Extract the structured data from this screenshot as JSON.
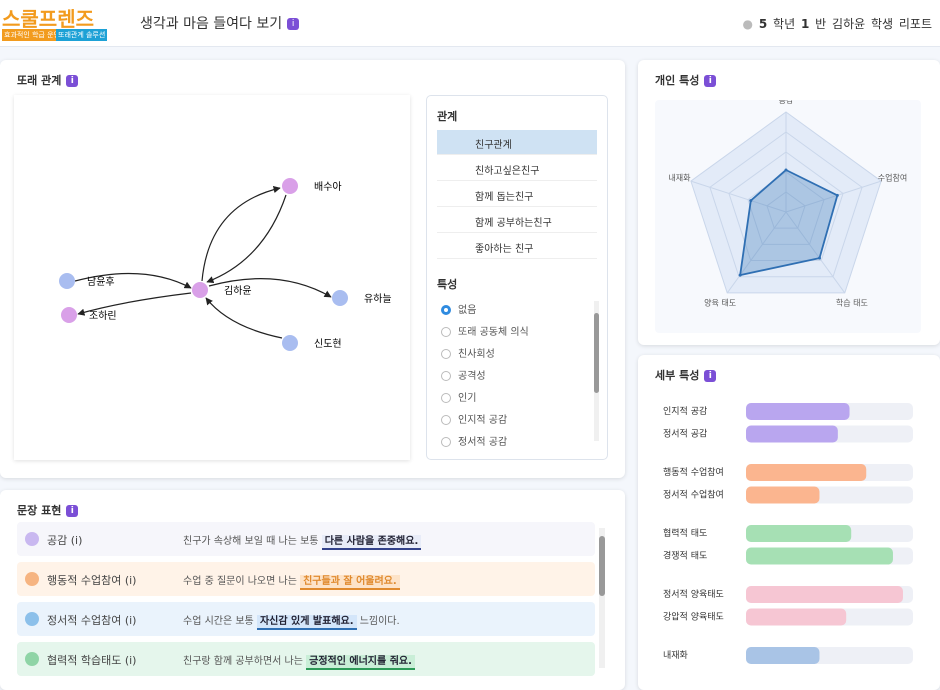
{
  "info": "i",
  "header": {
    "logo": "스쿨프렌즈",
    "logo_tags": [
      "효과적인 학급 운영",
      "또래관계 솔루션"
    ],
    "title": "생각과 마음 들여다 보기",
    "report": {
      "grade": "5",
      "grade_unit": "학년",
      "class": "1",
      "class_unit": "반",
      "name": "김하윤",
      "suffix": "학생 리포트"
    }
  },
  "peer": {
    "title": "또래 관계",
    "nodes": [
      "배수아",
      "남윤후",
      "조하린",
      "김하윤",
      "유하늘",
      "신도현"
    ],
    "relation_title": "관계",
    "relations": [
      {
        "label": "친구관계",
        "color": "#222222"
      },
      {
        "label": "친하고싶은친구",
        "color": "#3b4fd8"
      },
      {
        "label": "함께 돕는친구",
        "color": "#5ac46e"
      },
      {
        "label": "함께 공부하는친구",
        "color": "#2f8be0"
      },
      {
        "label": "좋아하는 친구",
        "color": "#7a3fc9"
      }
    ],
    "trait_title": "특성",
    "traits": [
      "없음",
      "또래 공동체 의식",
      "친사회성",
      "공격성",
      "인기",
      "인지적 공감",
      "정서적 공감"
    ]
  },
  "sentences": {
    "title": "문장 표현",
    "rows": [
      {
        "label": "공감 (i)",
        "text": "친구가 속상해 보일 때 나는 보통",
        "highlight": "다른 사람을 존중해요."
      },
      {
        "label": "행동적 수업참여 (i)",
        "text": "수업 중 질문이 나오면 나는",
        "highlight": "친구들과 잘 어울려요."
      },
      {
        "label": "정서적 수업참여 (i)",
        "text": "수업 시간은 보통",
        "highlight": "자신감 있게 발표해요.",
        "tail": "느낌이다."
      },
      {
        "label": "협력적 학습태도 (i)",
        "text": "친구랑 함께 공부하면서 나는",
        "highlight": "긍정적인 에너지를 줘요."
      }
    ]
  },
  "personal": {
    "title": "개인 특성",
    "type": "radar",
    "axes": [
      "공감",
      "수업참여",
      "학습 태도",
      "양육 태도",
      "내재화"
    ],
    "values": [
      42,
      54,
      57,
      78,
      37
    ],
    "rlim": [
      0,
      100
    ],
    "color": "#2f6fb3"
  },
  "detail": {
    "title": "세부 특성",
    "type": "bar",
    "xlim": [
      0,
      100
    ],
    "groups": [
      {
        "color": "#b9a6ef",
        "items": [
          {
            "label": "인지적 공감",
            "value": 62
          },
          {
            "label": "정서적 공감",
            "value": 55
          }
        ]
      },
      {
        "color": "#fbb58f",
        "items": [
          {
            "label": "행동적 수업참여",
            "value": 72
          },
          {
            "label": "정서적 수업참여",
            "value": 44
          }
        ]
      },
      {
        "color": "#a6e0b4",
        "items": [
          {
            "label": "협력적 태도",
            "value": 63
          },
          {
            "label": "경쟁적 태도",
            "value": 88
          }
        ]
      },
      {
        "color": "#f6c6d3",
        "items": [
          {
            "label": "정서적 양육태도",
            "value": 94
          },
          {
            "label": "강압적 양육태도",
            "value": 60
          }
        ]
      },
      {
        "color": "#a9c4e6",
        "items": [
          {
            "label": "내재화",
            "value": 44
          }
        ]
      }
    ]
  }
}
